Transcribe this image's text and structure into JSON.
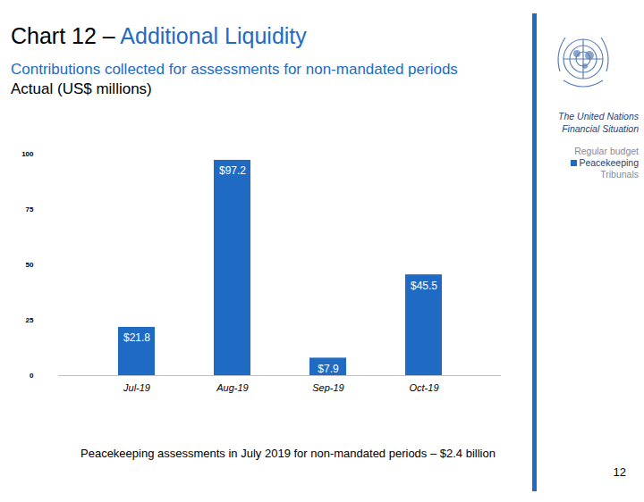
{
  "chart_data": {
    "type": "bar",
    "title": "Chart 12 – Additional Liquidity",
    "subtitle": "Contributions collected for assessments for non-mandated periods",
    "ylabel": "Actual (US$ millions)",
    "header_note": "The United Nations Financial Situation",
    "footnote": "Peacekeeping assessments in July 2019 for non-mandated periods – $2.4 billion",
    "page": "12",
    "categories": [
      "Jul-19",
      "Aug-19",
      "Sep-19",
      "Oct-19"
    ],
    "series": [
      {
        "name": "Regular budget",
        "values": [
          null,
          null,
          null,
          null
        ]
      },
      {
        "name": "Peacekeeping",
        "color": "#1F6BC4",
        "values": [
          21.8,
          97.2,
          7.9,
          45.5
        ],
        "value_labels": [
          "$21.8",
          "$97.2",
          "$7.9",
          "$45.5"
        ]
      },
      {
        "name": "Tribunals",
        "values": [
          null,
          null,
          null,
          null
        ]
      }
    ],
    "ylim": [
      0,
      100
    ],
    "yticks": [
      0,
      25,
      50,
      75,
      100
    ],
    "grid": false,
    "legend": "top-right",
    "data_labels": true
  }
}
